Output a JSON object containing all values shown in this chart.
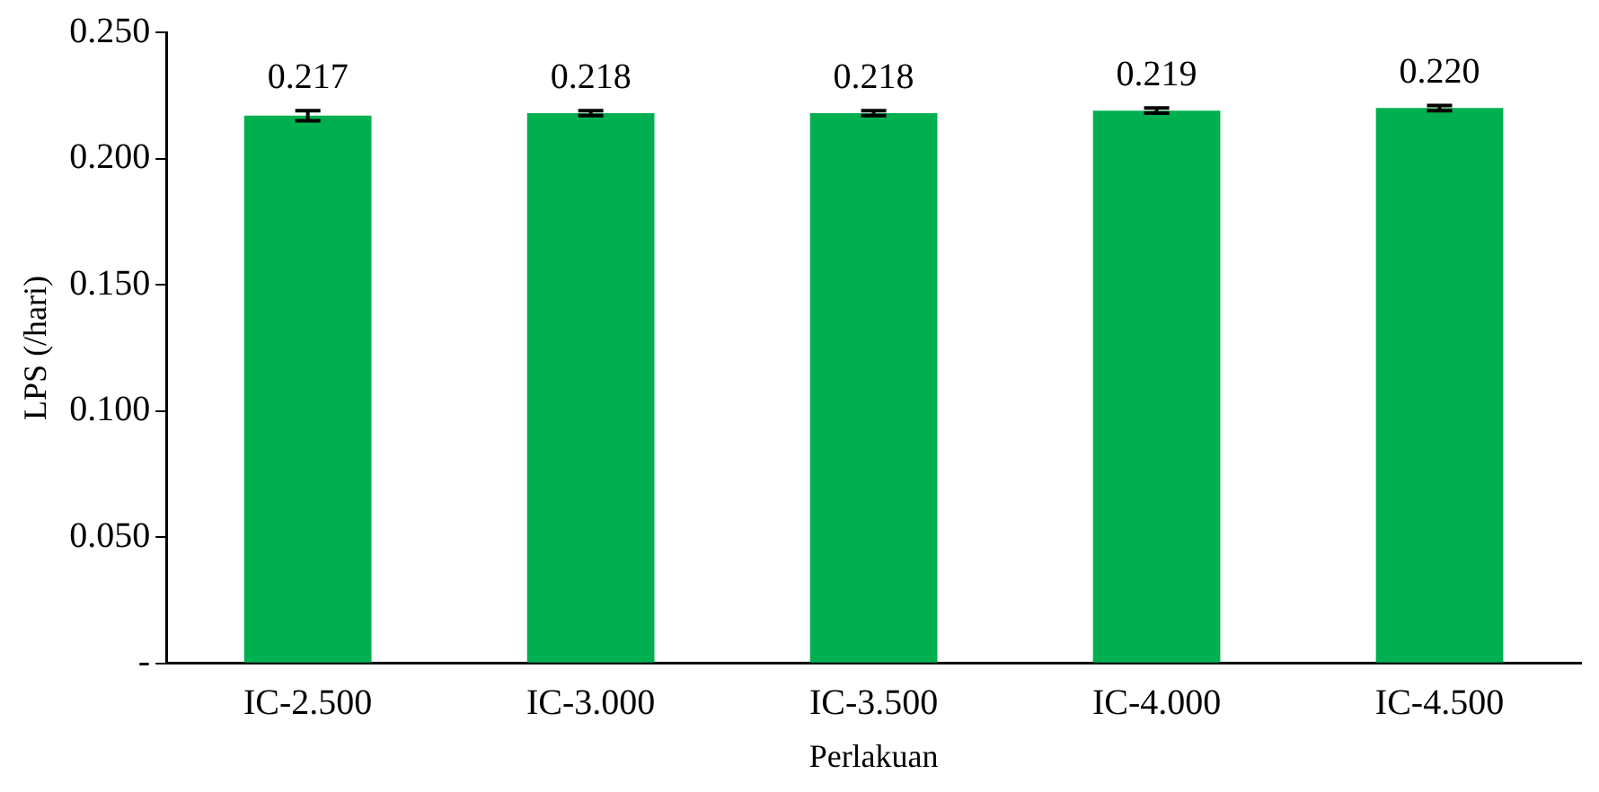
{
  "chart_data": {
    "type": "bar",
    "xlabel": "Perlakuan",
    "ylabel": "LPS (/hari)",
    "categories": [
      "IC-2.500",
      "IC-3.000",
      "IC-3.500",
      "IC-4.000",
      "IC-4.500"
    ],
    "series": [
      {
        "color": "#00b050",
        "values": [
          0.217,
          0.218,
          0.218,
          0.219,
          0.22
        ],
        "value_labels": [
          "0.217",
          "0.218",
          "0.218",
          "0.219",
          "0.220"
        ],
        "errors": [
          0.002,
          0.001,
          0.001,
          0.001,
          0.001
        ]
      }
    ],
    "ylim": [
      0,
      0.25
    ],
    "yticks": [
      {
        "value": 0,
        "label": "-"
      },
      {
        "value": 0.05,
        "label": "0.050"
      },
      {
        "value": 0.1,
        "label": "0.100"
      },
      {
        "value": 0.15,
        "label": "0.150"
      },
      {
        "value": 0.2,
        "label": "0.200"
      },
      {
        "value": 0.25,
        "label": "0.250"
      }
    ],
    "grid": false,
    "legend": false
  }
}
